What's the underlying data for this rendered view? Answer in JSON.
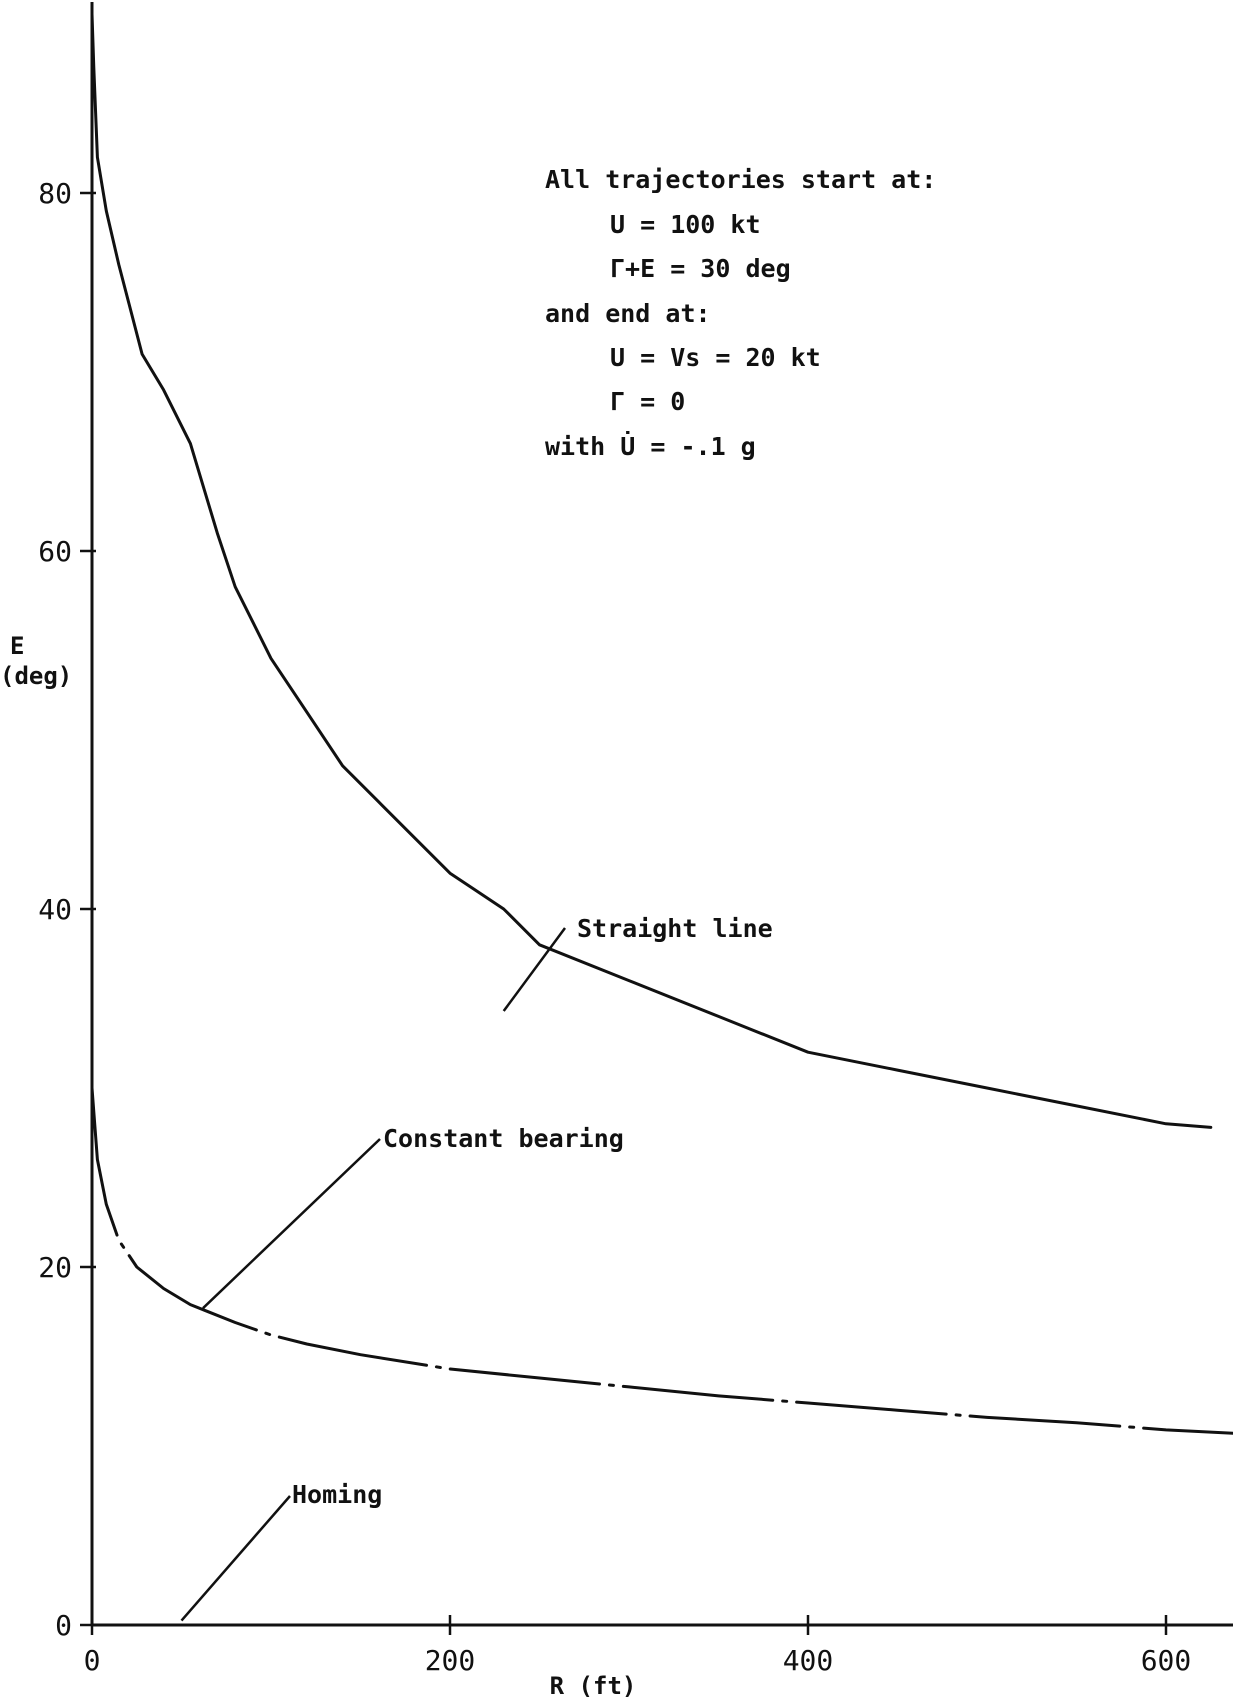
{
  "chart_data": {
    "type": "line",
    "xlabel": "R (ft)",
    "ylabel_line1": "E",
    "ylabel_line2": "(deg)",
    "xlim": [
      0,
      640
    ],
    "ylim": [
      0,
      90
    ],
    "x_ticks": [
      0,
      200,
      400,
      600
    ],
    "y_ticks": [
      0,
      20,
      40,
      60,
      80
    ],
    "x_tick_labels": [
      "0",
      "200",
      "400",
      "600"
    ],
    "y_tick_labels": [
      "0",
      "20",
      "40",
      "60",
      "80"
    ],
    "annotation": {
      "lines": [
        "All trajectories start at:",
        "U = 100 kt",
        "Γ+E = 30 deg",
        "and end at:",
        "U = Vs = 20 kt",
        "Γ = 0",
        "with U̇ = -.1 g"
      ]
    },
    "series": [
      {
        "name": "Straight line",
        "style": "solid",
        "points": [
          [
            0,
            90
          ],
          [
            1,
            87
          ],
          [
            3,
            82
          ],
          [
            8,
            79
          ],
          [
            15,
            76
          ],
          [
            28,
            71
          ],
          [
            40,
            69
          ],
          [
            55,
            66
          ],
          [
            70,
            61
          ],
          [
            80,
            58
          ],
          [
            90,
            56
          ],
          [
            100,
            54
          ],
          [
            120,
            51
          ],
          [
            140,
            48
          ],
          [
            160,
            46
          ],
          [
            180,
            44
          ],
          [
            200,
            42
          ],
          [
            230,
            40
          ],
          [
            250,
            38
          ],
          [
            300,
            36
          ],
          [
            350,
            34
          ],
          [
            400,
            32
          ],
          [
            450,
            31
          ],
          [
            500,
            30
          ],
          [
            550,
            29
          ],
          [
            600,
            28
          ],
          [
            625,
            27.8
          ]
        ]
      },
      {
        "name": "Constant bearing",
        "style": "dash-dot",
        "points": [
          [
            0,
            30
          ],
          [
            3,
            26
          ],
          [
            8,
            23.5
          ],
          [
            15,
            21.5
          ],
          [
            25,
            20
          ],
          [
            40,
            18.8
          ],
          [
            55,
            17.9
          ],
          [
            65,
            17.5
          ],
          [
            80,
            16.9
          ],
          [
            100,
            16.2
          ],
          [
            120,
            15.7
          ],
          [
            150,
            15.1
          ],
          [
            200,
            14.3
          ],
          [
            250,
            13.8
          ],
          [
            300,
            13.3
          ],
          [
            350,
            12.8
          ],
          [
            400,
            12.4
          ],
          [
            450,
            12.0
          ],
          [
            500,
            11.6
          ],
          [
            550,
            11.3
          ],
          [
            600,
            10.9
          ],
          [
            640,
            10.7
          ]
        ]
      },
      {
        "name": "Homing",
        "style": "solid",
        "points": [
          [
            0,
            0
          ],
          [
            0,
            90
          ]
        ]
      }
    ],
    "series_labels": [
      "Straight line",
      "Constant bearing",
      "Homing"
    ]
  }
}
